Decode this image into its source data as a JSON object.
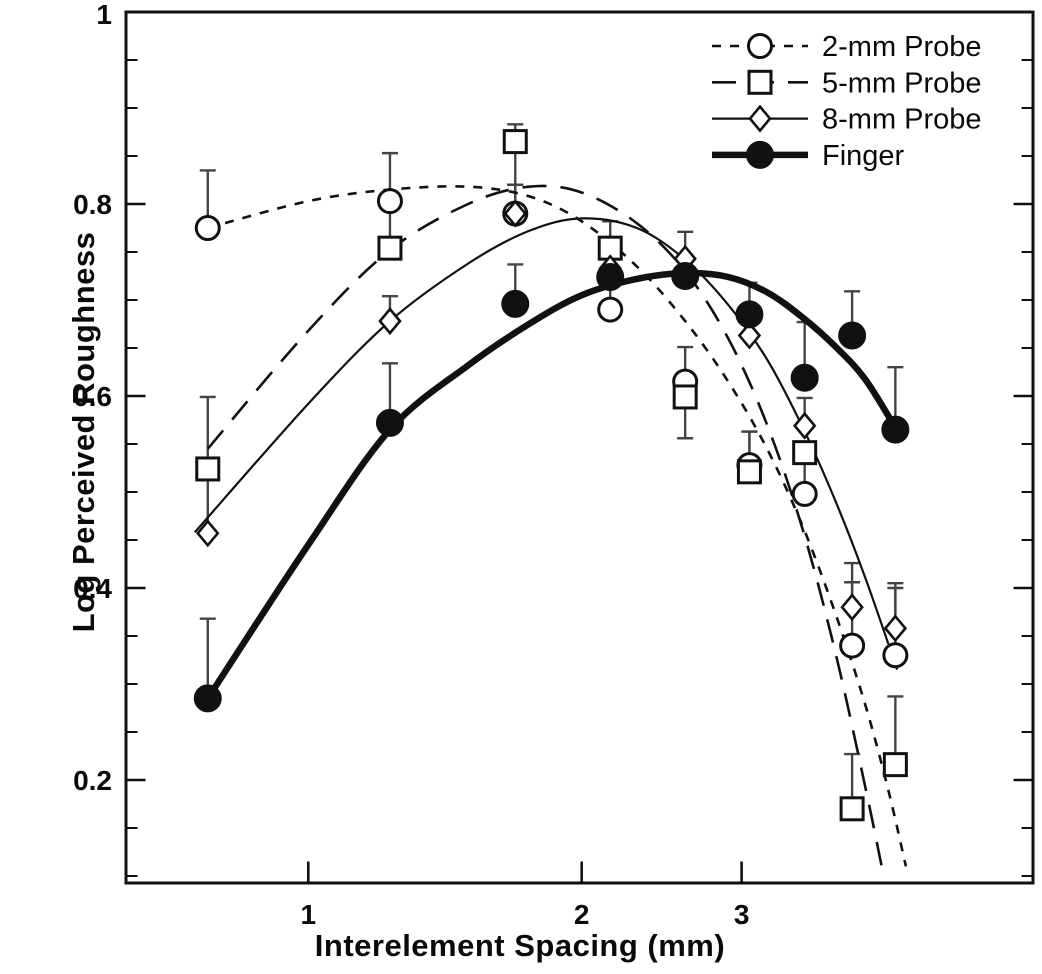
{
  "chart_data": {
    "type": "scatter",
    "title": "",
    "xlabel": "Interelement Spacing (mm)",
    "ylabel": "Log Perceived Roughness",
    "x_scale": "log",
    "y_scale": "linear",
    "xlim": [
      0.63,
      6.3
    ],
    "ylim": [
      0.09,
      1.0
    ],
    "x_ticks": [
      1,
      2,
      3
    ],
    "x_tick_labels": [
      "1",
      "2",
      "3"
    ],
    "y_ticks": [
      1,
      0.8,
      0.6,
      0.4,
      0.2
    ],
    "y_tick_labels": [
      "1",
      "0.8",
      "0.6",
      "0.4",
      "0.2"
    ],
    "y_minor_tick_step": 0.05,
    "grid": false,
    "legend_position": "top-right",
    "frame_color": "#111111",
    "x": [
      0.775,
      1.23,
      1.69,
      2.15,
      2.6,
      3.06,
      3.52,
      3.97,
      4.43
    ],
    "series": [
      {
        "name": "2-mm Probe",
        "marker": "open-circle",
        "line_style": "short-dash",
        "color": "#111111",
        "values": [
          0.775,
          0.803,
          0.79,
          0.69,
          0.615,
          0.528,
          0.498,
          0.34,
          0.33
        ],
        "err_up": [
          0.06,
          0.05,
          0.03,
          0.03,
          0.036,
          0.035,
          0.043,
          0.066,
          0.07
        ],
        "err_down": [
          0,
          0,
          0,
          0,
          0,
          0,
          0,
          0,
          0
        ],
        "fit_curve": [
          [
            0.775,
            0.775
          ],
          [
            1.0,
            0.803
          ],
          [
            1.23,
            0.815
          ],
          [
            1.5,
            0.818
          ],
          [
            1.75,
            0.808
          ],
          [
            2.0,
            0.782
          ],
          [
            2.3,
            0.735
          ],
          [
            2.6,
            0.678
          ],
          [
            2.9,
            0.615
          ],
          [
            3.2,
            0.545
          ],
          [
            3.5,
            0.465
          ],
          [
            3.8,
            0.375
          ],
          [
            4.1,
            0.28
          ],
          [
            4.35,
            0.19
          ],
          [
            4.55,
            0.11
          ]
        ]
      },
      {
        "name": "5-mm Probe",
        "marker": "open-square",
        "line_style": "long-dash",
        "color": "#111111",
        "values": [
          0.524,
          0.754,
          0.865,
          0.754,
          0.599,
          0.521,
          0.541,
          0.17,
          0.216
        ],
        "err_up": [
          0.075,
          0.055,
          0.018,
          0.028,
          0,
          0.042,
          0,
          0.057,
          0.071
        ],
        "err_down": [
          0,
          0,
          0.045,
          0,
          0.043,
          0,
          0,
          0,
          0
        ],
        "fit_curve": [
          [
            0.775,
            0.545
          ],
          [
            1.0,
            0.668
          ],
          [
            1.23,
            0.752
          ],
          [
            1.5,
            0.8
          ],
          [
            1.75,
            0.818
          ],
          [
            2.0,
            0.812
          ],
          [
            2.3,
            0.78
          ],
          [
            2.6,
            0.73
          ],
          [
            2.9,
            0.66
          ],
          [
            3.2,
            0.57
          ],
          [
            3.5,
            0.462
          ],
          [
            3.8,
            0.335
          ],
          [
            4.1,
            0.195
          ],
          [
            4.3,
            0.1
          ]
        ]
      },
      {
        "name": "8-mm Probe",
        "marker": "open-diamond",
        "line_style": "solid-thin",
        "color": "#111111",
        "values": [
          0.457,
          0.678,
          0.79,
          0.733,
          0.743,
          0.663,
          0.569,
          0.38,
          0.358
        ],
        "err_up": [
          0.068,
          0.026,
          0.03,
          0,
          0.028,
          0,
          0.029,
          0.046,
          0.047
        ],
        "err_down": [
          0,
          0,
          0,
          0,
          0,
          0,
          0,
          0,
          0
        ],
        "fit_curve": [
          [
            0.75,
            0.458
          ],
          [
            1.0,
            0.592
          ],
          [
            1.23,
            0.678
          ],
          [
            1.5,
            0.738
          ],
          [
            1.75,
            0.772
          ],
          [
            2.0,
            0.785
          ],
          [
            2.3,
            0.775
          ],
          [
            2.6,
            0.742
          ],
          [
            2.9,
            0.695
          ],
          [
            3.2,
            0.638
          ],
          [
            3.5,
            0.568
          ],
          [
            3.8,
            0.492
          ],
          [
            4.1,
            0.412
          ],
          [
            4.45,
            0.315
          ]
        ]
      },
      {
        "name": "Finger",
        "marker": "filled-circle",
        "line_style": "solid-thick",
        "color": "#111111",
        "values": [
          0.285,
          0.572,
          0.696,
          0.724,
          0.725,
          0.685,
          0.619,
          0.663,
          0.565
        ],
        "err_up": [
          0.083,
          0.062,
          0.041,
          0.04,
          0,
          0.033,
          0.058,
          0.046,
          0.065
        ],
        "err_down": [
          0,
          0,
          0,
          0,
          0,
          0,
          0,
          0,
          0
        ],
        "fit_curve": [
          [
            0.775,
            0.285
          ],
          [
            1.0,
            0.445
          ],
          [
            1.23,
            0.565
          ],
          [
            1.5,
            0.632
          ],
          [
            1.75,
            0.675
          ],
          [
            2.0,
            0.705
          ],
          [
            2.3,
            0.722
          ],
          [
            2.6,
            0.728
          ],
          [
            2.9,
            0.724
          ],
          [
            3.2,
            0.708
          ],
          [
            3.5,
            0.682
          ],
          [
            3.8,
            0.652
          ],
          [
            4.1,
            0.618
          ],
          [
            4.43,
            0.567
          ]
        ]
      }
    ],
    "error_bar_color": "#444444"
  }
}
